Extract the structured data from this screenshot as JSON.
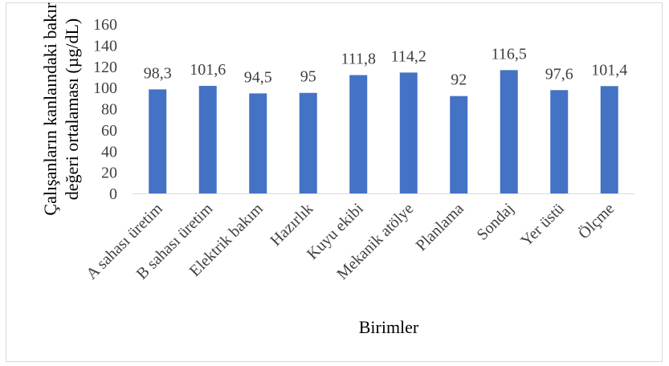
{
  "chart_data": {
    "type": "bar",
    "categories": [
      "A sahası üretim",
      "B sahası üretim",
      "Elektrik bakım",
      "Hazırlık",
      "Kuyu ekibi",
      "Mekanik atölye",
      "Planlama",
      "Sondaj",
      "Yer üstü",
      "Ölçme"
    ],
    "values": [
      98.3,
      101.6,
      94.5,
      95,
      111.8,
      114.2,
      92,
      116.5,
      97.6,
      101.4
    ],
    "data_labels": [
      "98,3",
      "101,6",
      "94,5",
      "95",
      "111,8",
      "114,2",
      "92",
      "116,5",
      "97,6",
      "101,4"
    ],
    "xlabel": "Birimler",
    "ylabel_line1": "Çalışanların kanlaındaki bakır",
    "ylabel_line2": "değeri ortalaması (µg/dL)",
    "ylim": [
      0,
      160
    ],
    "yticks": [
      0,
      20,
      40,
      60,
      80,
      100,
      120,
      140,
      160
    ],
    "grid": false,
    "legend": "none",
    "bar_color": "#4472c4"
  }
}
